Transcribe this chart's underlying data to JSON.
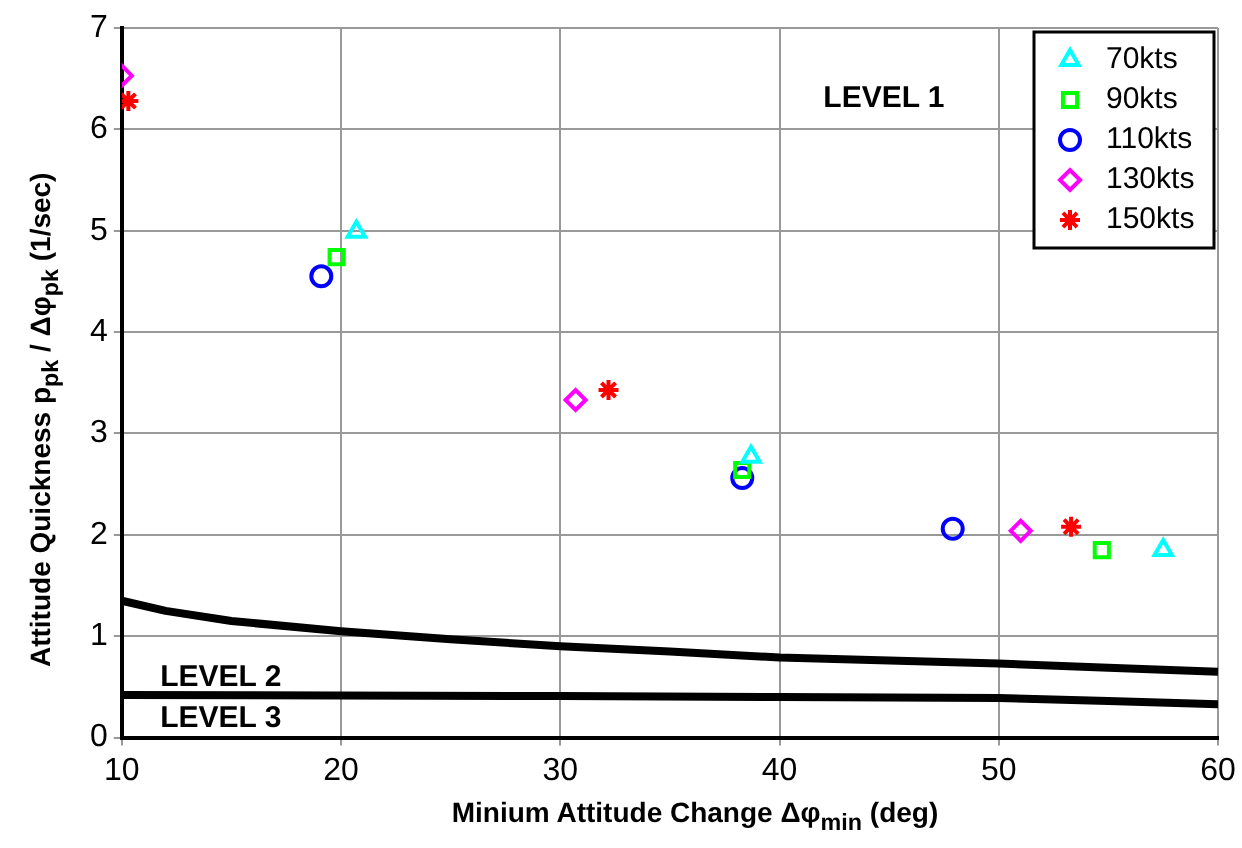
{
  "chart_data": {
    "type": "scatter",
    "xlabel": "Minium Attitude Change Δφ$_{min}$ (deg)",
    "ylabel": "Attitude Quickness p$_{pk}$ / Δφ$_{pk}$ (1/sec)",
    "xlim": [
      10,
      60
    ],
    "xticks": [
      10,
      20,
      30,
      40,
      50,
      60
    ],
    "ylim": [
      0,
      7
    ],
    "yticks": [
      0,
      1,
      2,
      3,
      4,
      5,
      6,
      7
    ],
    "grid": true,
    "legend": "top right",
    "annotations": [
      "LEVEL 1",
      "LEVEL 2",
      "LEVEL 3"
    ],
    "series": [
      {
        "name": "70kts",
        "color": "#00ffff",
        "marker": "triangle",
        "x": [
          20.7,
          38.7,
          57.5
        ],
        "values": [
          4.99,
          2.77,
          1.85
        ]
      },
      {
        "name": "90kts",
        "color": "#00ff00",
        "marker": "square",
        "x": [
          19.8,
          38.3,
          54.7
        ],
        "values": [
          4.74,
          2.64,
          1.85
        ]
      },
      {
        "name": "110kts",
        "color": "#0000ff",
        "marker": "circle",
        "x": [
          19.1,
          38.3,
          47.9
        ],
        "values": [
          4.55,
          2.56,
          2.06
        ]
      },
      {
        "name": "130kts",
        "color": "#ff00ff",
        "marker": "diamond",
        "x": [
          10,
          30.7,
          51.0
        ],
        "values": [
          6.53,
          3.33,
          2.04
        ]
      },
      {
        "name": "150kts",
        "color": "#ff0000",
        "marker": "cross",
        "x": [
          10.3,
          32.2,
          53.3
        ],
        "values": [
          6.28,
          3.43,
          2.08
        ]
      },
      {
        "type": "line",
        "color": "#000000",
        "marker": "none",
        "x": [
          10,
          12,
          15,
          20,
          25,
          30,
          35,
          40,
          45,
          50,
          55,
          60
        ],
        "values": [
          1.35,
          1.25,
          1.15,
          1.05,
          0.97,
          0.9,
          0.85,
          0.79,
          0.76,
          0.73,
          0.69,
          0.65
        ]
      },
      {
        "type": "line",
        "color": "#000000",
        "marker": "none",
        "x": [
          10,
          30,
          40,
          50,
          55,
          60
        ],
        "values": [
          0.42,
          0.41,
          0.4,
          0.39,
          0.36,
          0.33
        ]
      }
    ]
  }
}
